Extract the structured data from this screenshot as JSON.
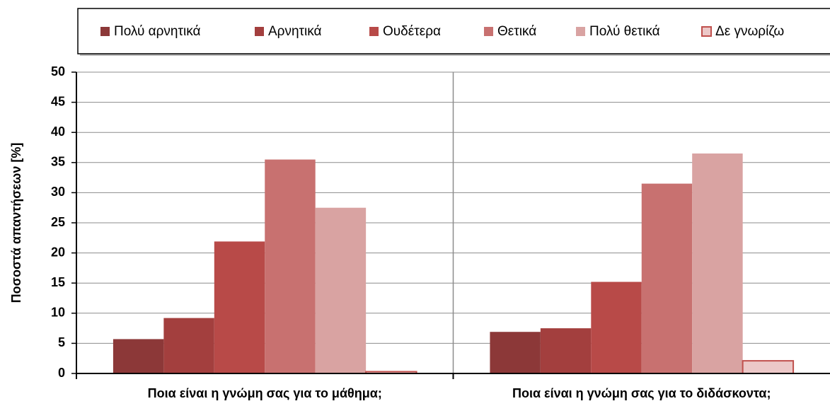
{
  "chart_data": {
    "type": "bar",
    "ylabel": "Ποσοστά απαντήσεων [%]",
    "categories": [
      "Ποια είναι η γνώμη σας για το μάθημα;",
      "Ποια είναι η γνώμη σας για το διδάσκοντα;"
    ],
    "series": [
      {
        "name": "Πολύ αρνητικά",
        "color": "#8c3838",
        "values": [
          5.7,
          6.9
        ]
      },
      {
        "name": "Αρνητικά",
        "color": "#a33f3e",
        "values": [
          9.2,
          7.5
        ]
      },
      {
        "name": "Ουδέτερα",
        "color": "#b84a48",
        "values": [
          21.9,
          15.2
        ]
      },
      {
        "name": "Θετικά",
        "color": "#c87170",
        "values": [
          35.5,
          31.5
        ]
      },
      {
        "name": "Πολύ θετικά",
        "color": "#d9a3a2",
        "values": [
          27.5,
          36.5
        ]
      },
      {
        "name": "Δε γνωρίζω",
        "color": "#ecc8c8",
        "edgecolor": "#c0504d",
        "values": [
          0.3,
          2.1
        ]
      }
    ],
    "ylim": [
      0,
      50
    ],
    "yticks": [
      0,
      5,
      10,
      15,
      20,
      25,
      30,
      35,
      40,
      45,
      50
    ],
    "grid": true,
    "legend": "top"
  }
}
